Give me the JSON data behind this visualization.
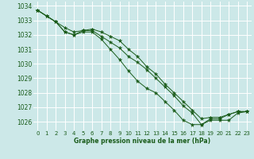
{
  "background_color": "#cce8e8",
  "grid_color": "#aacccc",
  "line_color": "#1a5c1a",
  "title": "Graphe pression niveau de la mer (hPa)",
  "xlim": [
    -0.5,
    23.5
  ],
  "ylim": [
    1025.4,
    1034.3
  ],
  "yticks": [
    1026,
    1027,
    1028,
    1029,
    1030,
    1031,
    1032,
    1033,
    1034
  ],
  "xticks": [
    0,
    1,
    2,
    3,
    4,
    5,
    6,
    7,
    8,
    9,
    10,
    11,
    12,
    13,
    14,
    15,
    16,
    17,
    18,
    19,
    20,
    21,
    22,
    23
  ],
  "series": [
    [
      1033.7,
      1033.3,
      1032.9,
      1032.5,
      1032.2,
      1032.3,
      1032.3,
      1031.9,
      1031.5,
      1031.1,
      1030.5,
      1030.1,
      1029.6,
      1029.0,
      1028.4,
      1027.8,
      1027.1,
      1026.6,
      1025.8,
      1026.1,
      1026.1,
      1026.1,
      1026.6,
      1026.7
    ],
    [
      1033.7,
      1033.3,
      1032.9,
      1032.2,
      1032.0,
      1032.2,
      1032.2,
      1031.7,
      1031.0,
      1030.3,
      1029.5,
      1028.8,
      1028.3,
      1028.0,
      1027.4,
      1026.8,
      1026.1,
      1025.8,
      1025.8,
      1026.2,
      1026.2,
      1026.5,
      1026.7,
      1026.7
    ],
    [
      1033.7,
      1033.3,
      1032.9,
      1032.2,
      1032.0,
      1032.3,
      1032.4,
      1032.2,
      1031.9,
      1031.6,
      1031.0,
      1030.5,
      1029.8,
      1029.3,
      1028.6,
      1028.0,
      1027.4,
      1026.8,
      1026.2,
      1026.3,
      1026.3,
      1026.5,
      1026.7,
      1026.7
    ]
  ]
}
